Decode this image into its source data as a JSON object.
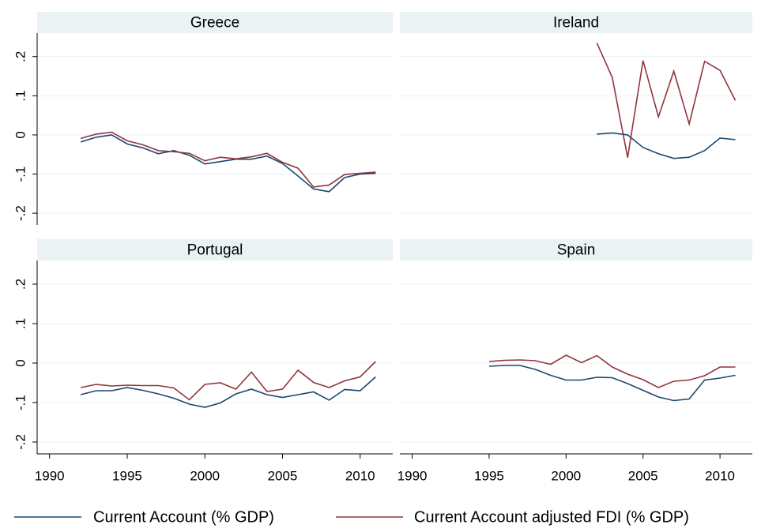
{
  "chart_data": [
    {
      "type": "line",
      "title": "Greece",
      "x": [
        1992,
        1993,
        1994,
        1995,
        1996,
        1997,
        1998,
        1999,
        2000,
        2001,
        2002,
        2003,
        2004,
        2005,
        2006,
        2007,
        2008,
        2009,
        2010,
        2011
      ],
      "series": [
        {
          "name": "Current Account (% GDP)",
          "color": "#1a476f",
          "values": [
            -0.018,
            -0.006,
            0.0,
            -0.023,
            -0.033,
            -0.048,
            -0.04,
            -0.052,
            -0.074,
            -0.068,
            -0.062,
            -0.062,
            -0.054,
            -0.073,
            -0.105,
            -0.138,
            -0.145,
            -0.109,
            -0.1,
            -0.098
          ]
        },
        {
          "name": "Current Account adjusted FDI (% GDP)",
          "color": "#90353b",
          "values": [
            -0.009,
            0.002,
            0.007,
            -0.015,
            -0.025,
            -0.04,
            -0.043,
            -0.047,
            -0.066,
            -0.057,
            -0.061,
            -0.056,
            -0.047,
            -0.07,
            -0.085,
            -0.133,
            -0.128,
            -0.101,
            -0.098,
            -0.095
          ]
        }
      ],
      "xlim": [
        1989.2,
        2012.1
      ],
      "ylim": [
        -0.23,
        0.26
      ],
      "yticks": [
        {
          "value": -0.2,
          "label": "-.2"
        },
        {
          "value": -0.1,
          "label": "-.1"
        },
        0,
        {
          "value": 0.1,
          "label": ".1"
        },
        {
          "value": 0.2,
          "label": ".2"
        }
      ],
      "grid": true
    },
    {
      "type": "line",
      "title": "Ireland",
      "x": [
        2002,
        2003,
        2004,
        2005,
        2006,
        2007,
        2008,
        2009,
        2010,
        2011
      ],
      "series": [
        {
          "name": "Current Account (% GDP)",
          "color": "#1a476f",
          "values": [
            0.002,
            0.005,
            0.0,
            -0.032,
            -0.048,
            -0.06,
            -0.057,
            -0.04,
            -0.008,
            -0.012
          ]
        },
        {
          "name": "Current Account adjusted FDI (% GDP)",
          "color": "#90353b",
          "values": [
            0.235,
            0.147,
            -0.058,
            0.19,
            0.046,
            0.163,
            0.028,
            0.188,
            0.165,
            0.088
          ]
        }
      ],
      "xlim": [
        1989.2,
        2012.1
      ],
      "ylim": [
        -0.23,
        0.26
      ],
      "yticks": [
        -0.2,
        -0.1,
        0,
        0.1,
        0.2
      ],
      "grid": true
    },
    {
      "type": "line",
      "title": "Portugal",
      "x": [
        1992,
        1993,
        1994,
        1995,
        1996,
        1997,
        1998,
        1999,
        2000,
        2001,
        2002,
        2003,
        2004,
        2005,
        2006,
        2007,
        2008,
        2009,
        2010,
        2011
      ],
      "series": [
        {
          "name": "Current Account (% GDP)",
          "color": "#1a476f",
          "values": [
            -0.08,
            -0.07,
            -0.07,
            -0.062,
            -0.069,
            -0.078,
            -0.089,
            -0.104,
            -0.112,
            -0.101,
            -0.078,
            -0.066,
            -0.08,
            -0.087,
            -0.08,
            -0.073,
            -0.094,
            -0.067,
            -0.07,
            -0.035
          ]
        },
        {
          "name": "Current Account adjusted FDI (% GDP)",
          "color": "#90353b",
          "values": [
            -0.062,
            -0.054,
            -0.058,
            -0.056,
            -0.057,
            -0.057,
            -0.063,
            -0.093,
            -0.054,
            -0.05,
            -0.066,
            -0.023,
            -0.072,
            -0.066,
            -0.018,
            -0.049,
            -0.062,
            -0.045,
            -0.035,
            0.004
          ]
        }
      ],
      "xlim": [
        1989.2,
        2012.1
      ],
      "ylim": [
        -0.23,
        0.26
      ],
      "xticks": [
        1990,
        1995,
        2000,
        2005,
        2010
      ],
      "yticks": [
        {
          "value": -0.2,
          "label": "-.2"
        },
        {
          "value": -0.1,
          "label": "-.1"
        },
        0,
        {
          "value": 0.1,
          "label": ".1"
        },
        {
          "value": 0.2,
          "label": ".2"
        }
      ],
      "grid": true
    },
    {
      "type": "line",
      "title": "Spain",
      "x": [
        1995,
        1996,
        1997,
        1998,
        1999,
        2000,
        2001,
        2002,
        2003,
        2004,
        2005,
        2006,
        2007,
        2008,
        2009,
        2010,
        2011
      ],
      "series": [
        {
          "name": "Current Account (% GDP)",
          "color": "#1a476f",
          "values": [
            -0.008,
            -0.006,
            -0.006,
            -0.016,
            -0.031,
            -0.043,
            -0.043,
            -0.036,
            -0.037,
            -0.052,
            -0.069,
            -0.086,
            -0.095,
            -0.091,
            -0.043,
            -0.038,
            -0.031
          ]
        },
        {
          "name": "Current Account adjusted FDI (% GDP)",
          "color": "#90353b",
          "values": [
            0.004,
            0.007,
            0.008,
            0.006,
            -0.003,
            0.02,
            0.001,
            0.019,
            -0.01,
            -0.028,
            -0.042,
            -0.062,
            -0.046,
            -0.043,
            -0.032,
            -0.01,
            -0.01
          ]
        }
      ],
      "xlim": [
        1989.2,
        2012.1
      ],
      "ylim": [
        -0.23,
        0.26
      ],
      "xticks": [
        1990,
        1995,
        2000,
        2005,
        2010
      ],
      "yticks": [
        -0.2,
        -0.1,
        0,
        0.1,
        0.2
      ],
      "grid": true
    }
  ]
}
